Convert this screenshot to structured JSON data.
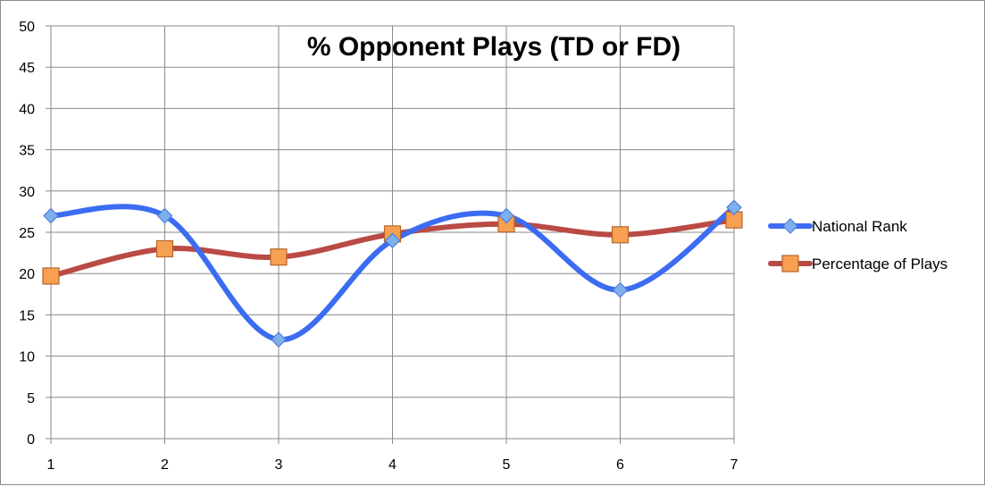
{
  "chart_data": {
    "type": "line",
    "title": "% Opponent Plays (TD or FD)",
    "xlabel": "",
    "ylabel": "",
    "x": [
      1,
      2,
      3,
      4,
      5,
      6,
      7
    ],
    "ylim": [
      0,
      50
    ],
    "yticks": [
      0,
      5,
      10,
      15,
      20,
      25,
      30,
      35,
      40,
      45,
      50
    ],
    "grid": true,
    "smooth": true,
    "legend_position": "right",
    "series": [
      {
        "name": "National Rank",
        "values": [
          27,
          27,
          12,
          24,
          27,
          18,
          28
        ],
        "color": "#3b6cf2",
        "marker": "diamond",
        "marker_color": "#7fb0ee"
      },
      {
        "name": "Percentage of Plays",
        "values": [
          19.7,
          23,
          22,
          24.8,
          26,
          24.7,
          26.5
        ],
        "color": "#b94a44",
        "marker": "square",
        "marker_color": "#f7a052"
      }
    ]
  }
}
